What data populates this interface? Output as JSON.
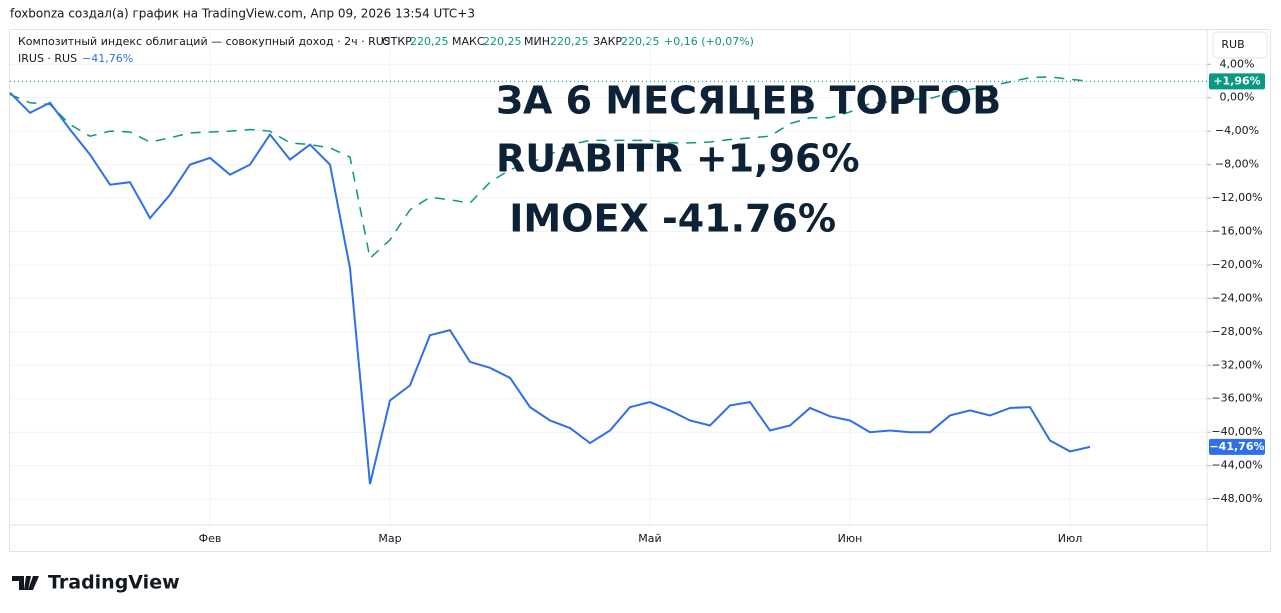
{
  "header": "foxbonza создал(а) график на TradingView.com, Апр 09, 2026 13:54 UTC+3",
  "legend": {
    "open_label": "ОТКР",
    "open": "220,25",
    "high_label": "МАКС",
    "high": "220,25",
    "low_label": "МИН",
    "low": "220,25",
    "close_label": "ЗАКР",
    "close": "220,25",
    "change": "+0,16 (+0,07%)",
    "irus_change": "−41,76%"
  },
  "currency": "RUB",
  "footer_logo": "TradingView",
  "chart_data": {
    "type": "line",
    "annotations": [
      "ЗА 6 МЕСЯЦЕВ ТОРГОВ",
      "RUABITR +1,96%",
      " IMOEX -41.76%"
    ],
    "categories": [
      null,
      null,
      null,
      null,
      null,
      null,
      null,
      null,
      null,
      null,
      "Фев",
      null,
      null,
      null,
      null,
      null,
      null,
      null,
      null,
      "Мар",
      null,
      null,
      null,
      null,
      null,
      null,
      null,
      null,
      null,
      null,
      null,
      null,
      "Май",
      null,
      null,
      null,
      null,
      null,
      null,
      null,
      null,
      null,
      "Июн",
      null,
      null,
      null,
      null,
      null,
      null,
      null,
      null,
      null,
      null,
      "Июл",
      null
    ],
    "series": [
      {
        "name": "Композитный индекс облигаций — совокупный доход · 2ч · RUS",
        "color": "#089981",
        "dashed": true,
        "last_label": "+1,96%",
        "values": [
          0.4,
          -0.6,
          -0.8,
          -3.2,
          -4.6,
          -4.0,
          -4.1,
          -5.3,
          -4.8,
          -4.2,
          -4.1,
          -4.0,
          -3.8,
          -4.0,
          -5.4,
          -5.6,
          -6.0,
          -7.1,
          -19.2,
          -17.0,
          -13.4,
          -11.9,
          -12.2,
          -12.6,
          -10.1,
          -8.6,
          -7.8,
          -6.8,
          -5.6,
          -5.1,
          -5.1,
          -5.1,
          -5.1,
          -5.4,
          -5.4,
          -5.3,
          -5.0,
          -4.8,
          -4.6,
          -3.1,
          -2.4,
          -2.4,
          -1.7,
          -0.7,
          -0.5,
          -0.2,
          -0.1,
          0.6,
          1.0,
          1.4,
          1.9,
          2.4,
          2.5,
          2.2,
          1.96
        ]
      },
      {
        "name": "IRUS · RUS",
        "color": "#2f6fe8",
        "dashed": false,
        "last_label": "−41,76%",
        "values": [
          0.6,
          -1.8,
          -0.6,
          -3.8,
          -6.8,
          -10.4,
          -10.1,
          -14.4,
          -11.6,
          -8.0,
          -7.2,
          -9.2,
          -8.0,
          -4.4,
          -7.4,
          -5.6,
          -8.0,
          -20.4,
          -46.2,
          -36.2,
          -34.4,
          -28.4,
          -27.8,
          -31.6,
          -32.3,
          -33.5,
          -37.0,
          -38.6,
          -39.5,
          -41.3,
          -39.8,
          -37.0,
          -36.4,
          -37.4,
          -38.6,
          -39.2,
          -36.8,
          -36.4,
          -39.8,
          -39.2,
          -37.1,
          -38.1,
          -38.6,
          -40.0,
          -39.8,
          -40.0,
          -40.0,
          -38.0,
          -37.4,
          -38.0,
          -37.1,
          -37.0,
          -41.0,
          -42.3,
          -41.76
        ]
      }
    ],
    "ylim": [
      -51.1,
      8.1
    ],
    "yticks": [
      {
        "value": 4,
        "label": "4,00%"
      },
      {
        "value": 0,
        "label": "0,00%"
      },
      {
        "value": -4,
        "label": "−4,00%"
      },
      {
        "value": -8,
        "label": "−8,00%"
      },
      {
        "value": -12,
        "label": "−12,00%"
      },
      {
        "value": -16,
        "label": "−16,00%"
      },
      {
        "value": -20,
        "label": "−20,00%"
      },
      {
        "value": -24,
        "label": "−24,00%"
      },
      {
        "value": -28,
        "label": "−28,00%"
      },
      {
        "value": -32,
        "label": "−32,00%"
      },
      {
        "value": -36,
        "label": "−36,00%"
      },
      {
        "value": -40,
        "label": "−40,00%"
      },
      {
        "value": -44,
        "label": "−44,00%"
      },
      {
        "value": -48,
        "label": "−48,00%"
      }
    ],
    "grid": true
  }
}
